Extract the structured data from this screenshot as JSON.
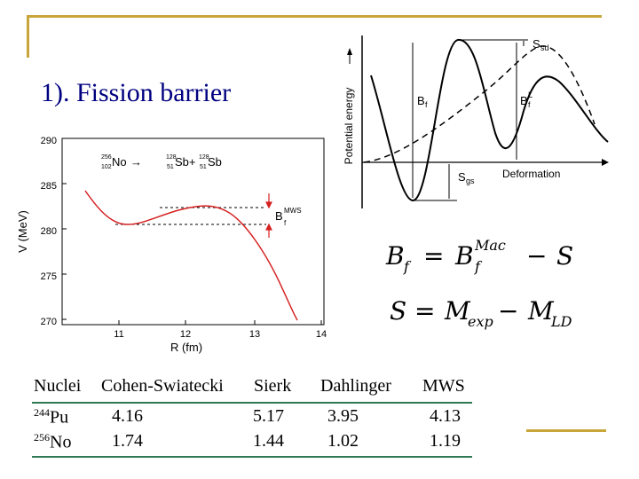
{
  "slide": {
    "title": "1). Fission barrier"
  },
  "left_plot": {
    "y_label": "V (MeV)",
    "x_label": "R (fm)",
    "y_ticks": [
      "290",
      "285",
      "280",
      "275",
      "270"
    ],
    "x_ticks": [
      "11",
      "12",
      "13",
      "14"
    ],
    "reaction_parent": "No",
    "reaction_parent_mass": "256",
    "reaction_parent_z": "102",
    "reaction_plus": "→",
    "reaction_frag1": "Sb+",
    "reaction_frag1_mass": "128",
    "reaction_frag1_z": "51",
    "reaction_frag2": "Sb",
    "reaction_frag2_mass": "128",
    "reaction_frag2_z": "51",
    "barrier_label": "B",
    "barrier_sub": "f",
    "barrier_sup": "MWS"
  },
  "right_plot": {
    "y_label": "Potential energy",
    "x_label": "Deformation",
    "bf_label": "B",
    "bf_sub": "f",
    "bfl_label": "B",
    "bfl_sub": "f",
    "bfl_sup": "L",
    "ssd_label": "S",
    "ssd_sub": "sd",
    "sgs_label": "S",
    "sgs_sub": "gs"
  },
  "formulas": {
    "f1_lhs": "B",
    "f1_lhs_sub": "f",
    "f1_eq": "=",
    "f1_rhs": "B",
    "f1_rhs_sub": "f",
    "f1_rhs_sup": "Mac",
    "f1_minus": "−",
    "f1_s": "S",
    "f2_lhs": "S",
    "f2_eq": "=",
    "f2_m1": "M",
    "f2_m1_sub": "exp",
    "f2_minus": "−",
    "f2_m2": "M",
    "f2_m2_sub": "LD"
  },
  "table": {
    "headers": [
      "Nuclei",
      "Cohen-Swiatecki",
      "Sierk",
      "Dahlinger",
      "MWS"
    ],
    "rows": [
      {
        "mass": "244",
        "element": "Pu",
        "values": [
          "4.16",
          "5.17",
          "3.95",
          "4.13"
        ]
      },
      {
        "mass": "256",
        "element": "No",
        "values": [
          "1.74",
          "1.44",
          "1.02",
          "1.19"
        ]
      }
    ]
  },
  "colors": {
    "frame": "#c9a63a",
    "title": "#000080",
    "curve": "#d62020",
    "table_rule": "#2f7a55"
  }
}
